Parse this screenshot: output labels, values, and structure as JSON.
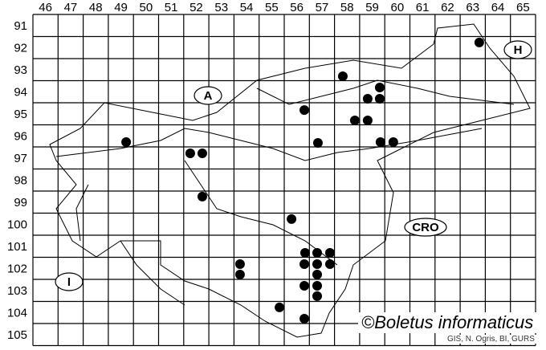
{
  "map": {
    "columns": [
      "46",
      "47",
      "48",
      "49",
      "50",
      "51",
      "52",
      "53",
      "54",
      "55",
      "56",
      "57",
      "58",
      "59",
      "60",
      "61",
      "62",
      "63",
      "64",
      "65"
    ],
    "rows": [
      "91",
      "92",
      "93",
      "94",
      "95",
      "96",
      "97",
      "98",
      "99",
      "100",
      "101",
      "102",
      "103",
      "104",
      "105"
    ],
    "region_labels": [
      "A",
      "H",
      "CRO",
      "I"
    ],
    "copyright": "©Boletus informaticus",
    "credit": "GIS, N. Ogris, BI, GURS",
    "dot_color": "#000000",
    "records": [
      {
        "x": 63.26,
        "y": 91.77
      },
      {
        "x": 57.83,
        "y": 93.3
      },
      {
        "x": 59.3,
        "y": 93.81
      },
      {
        "x": 58.82,
        "y": 94.32
      },
      {
        "x": 59.3,
        "y": 94.32
      },
      {
        "x": 56.3,
        "y": 94.83
      },
      {
        "x": 58.31,
        "y": 95.3
      },
      {
        "x": 58.82,
        "y": 95.3
      },
      {
        "x": 49.21,
        "y": 96.28
      },
      {
        "x": 56.84,
        "y": 96.32
      },
      {
        "x": 59.33,
        "y": 96.28
      },
      {
        "x": 59.84,
        "y": 96.28
      },
      {
        "x": 51.76,
        "y": 96.79
      },
      {
        "x": 52.24,
        "y": 96.79
      },
      {
        "x": 52.24,
        "y": 98.75
      },
      {
        "x": 55.79,
        "y": 99.77
      },
      {
        "x": 56.33,
        "y": 101.3
      },
      {
        "x": 56.81,
        "y": 101.3
      },
      {
        "x": 57.32,
        "y": 101.3
      },
      {
        "x": 53.74,
        "y": 101.81
      },
      {
        "x": 56.3,
        "y": 101.81
      },
      {
        "x": 56.81,
        "y": 101.81
      },
      {
        "x": 57.32,
        "y": 101.81
      },
      {
        "x": 53.74,
        "y": 102.28
      },
      {
        "x": 56.81,
        "y": 102.28
      },
      {
        "x": 56.3,
        "y": 102.79
      },
      {
        "x": 56.81,
        "y": 102.79
      },
      {
        "x": 56.81,
        "y": 103.26
      },
      {
        "x": 55.31,
        "y": 103.77
      },
      {
        "x": 56.3,
        "y": 104.28
      }
    ]
  }
}
